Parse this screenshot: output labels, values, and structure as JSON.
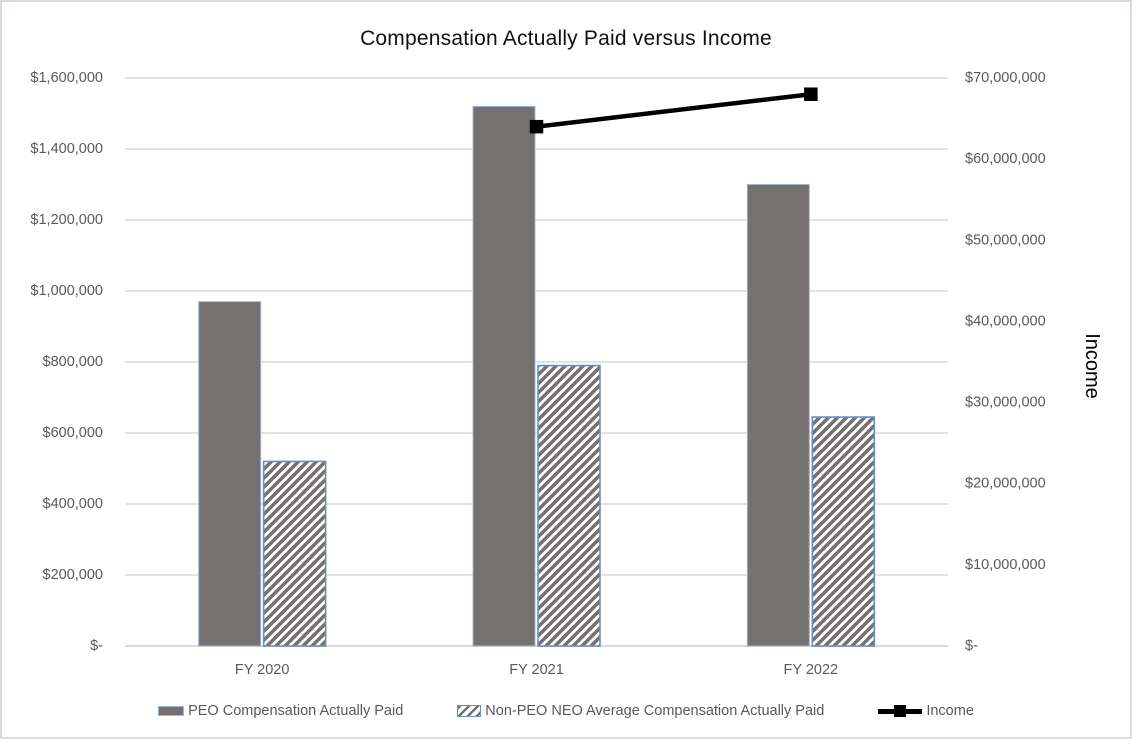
{
  "chart_data": {
    "type": "combo-bar-line",
    "title": "Compensation Actually Paid versus Income",
    "categories": [
      "FY 2020",
      "FY 2021",
      "FY 2022"
    ],
    "series": [
      {
        "name": "PEO Compensation Actually Paid",
        "type": "bar",
        "style": "solid-gray",
        "axis": "left",
        "values": [
          970000,
          1520000,
          1300000
        ]
      },
      {
        "name": "Non-PEO NEO Average Compensation Actually Paid",
        "type": "bar",
        "style": "diagonal-hatch",
        "axis": "left",
        "values": [
          520000,
          790000,
          645000
        ]
      },
      {
        "name": "Income",
        "type": "line",
        "style": "black-line-square-markers",
        "axis": "right",
        "values": [
          null,
          64000000,
          68000000
        ]
      }
    ],
    "left_axis": {
      "min": 0,
      "max": 1600000,
      "tick_step": 200000,
      "ticks": [
        "$1,600,000",
        "$1,400,000",
        "$1,200,000",
        "$1,000,000",
        "$800,000",
        "$600,000",
        "$400,000",
        "$200,000",
        "$-"
      ]
    },
    "right_axis": {
      "title": "Income",
      "min": 0,
      "max": 70000000,
      "tick_step": 10000000,
      "ticks": [
        "$70,000,000",
        "$60,000,000",
        "$50,000,000",
        "$40,000,000",
        "$30,000,000",
        "$20,000,000",
        "$10,000,000",
        "$-"
      ]
    },
    "legend_position": "bottom",
    "grid": "horizontal",
    "colors": {
      "bar_fill": "#767171",
      "bar_border": "#9FB6D8",
      "hatch_stroke": "#767171",
      "hatch_border": "#698FC4",
      "grid_line": "#D9D9D9",
      "axis_line": "#D9D9D9",
      "income_line": "#000000",
      "tick_text": "#595959",
      "title_text": "#111111"
    }
  }
}
